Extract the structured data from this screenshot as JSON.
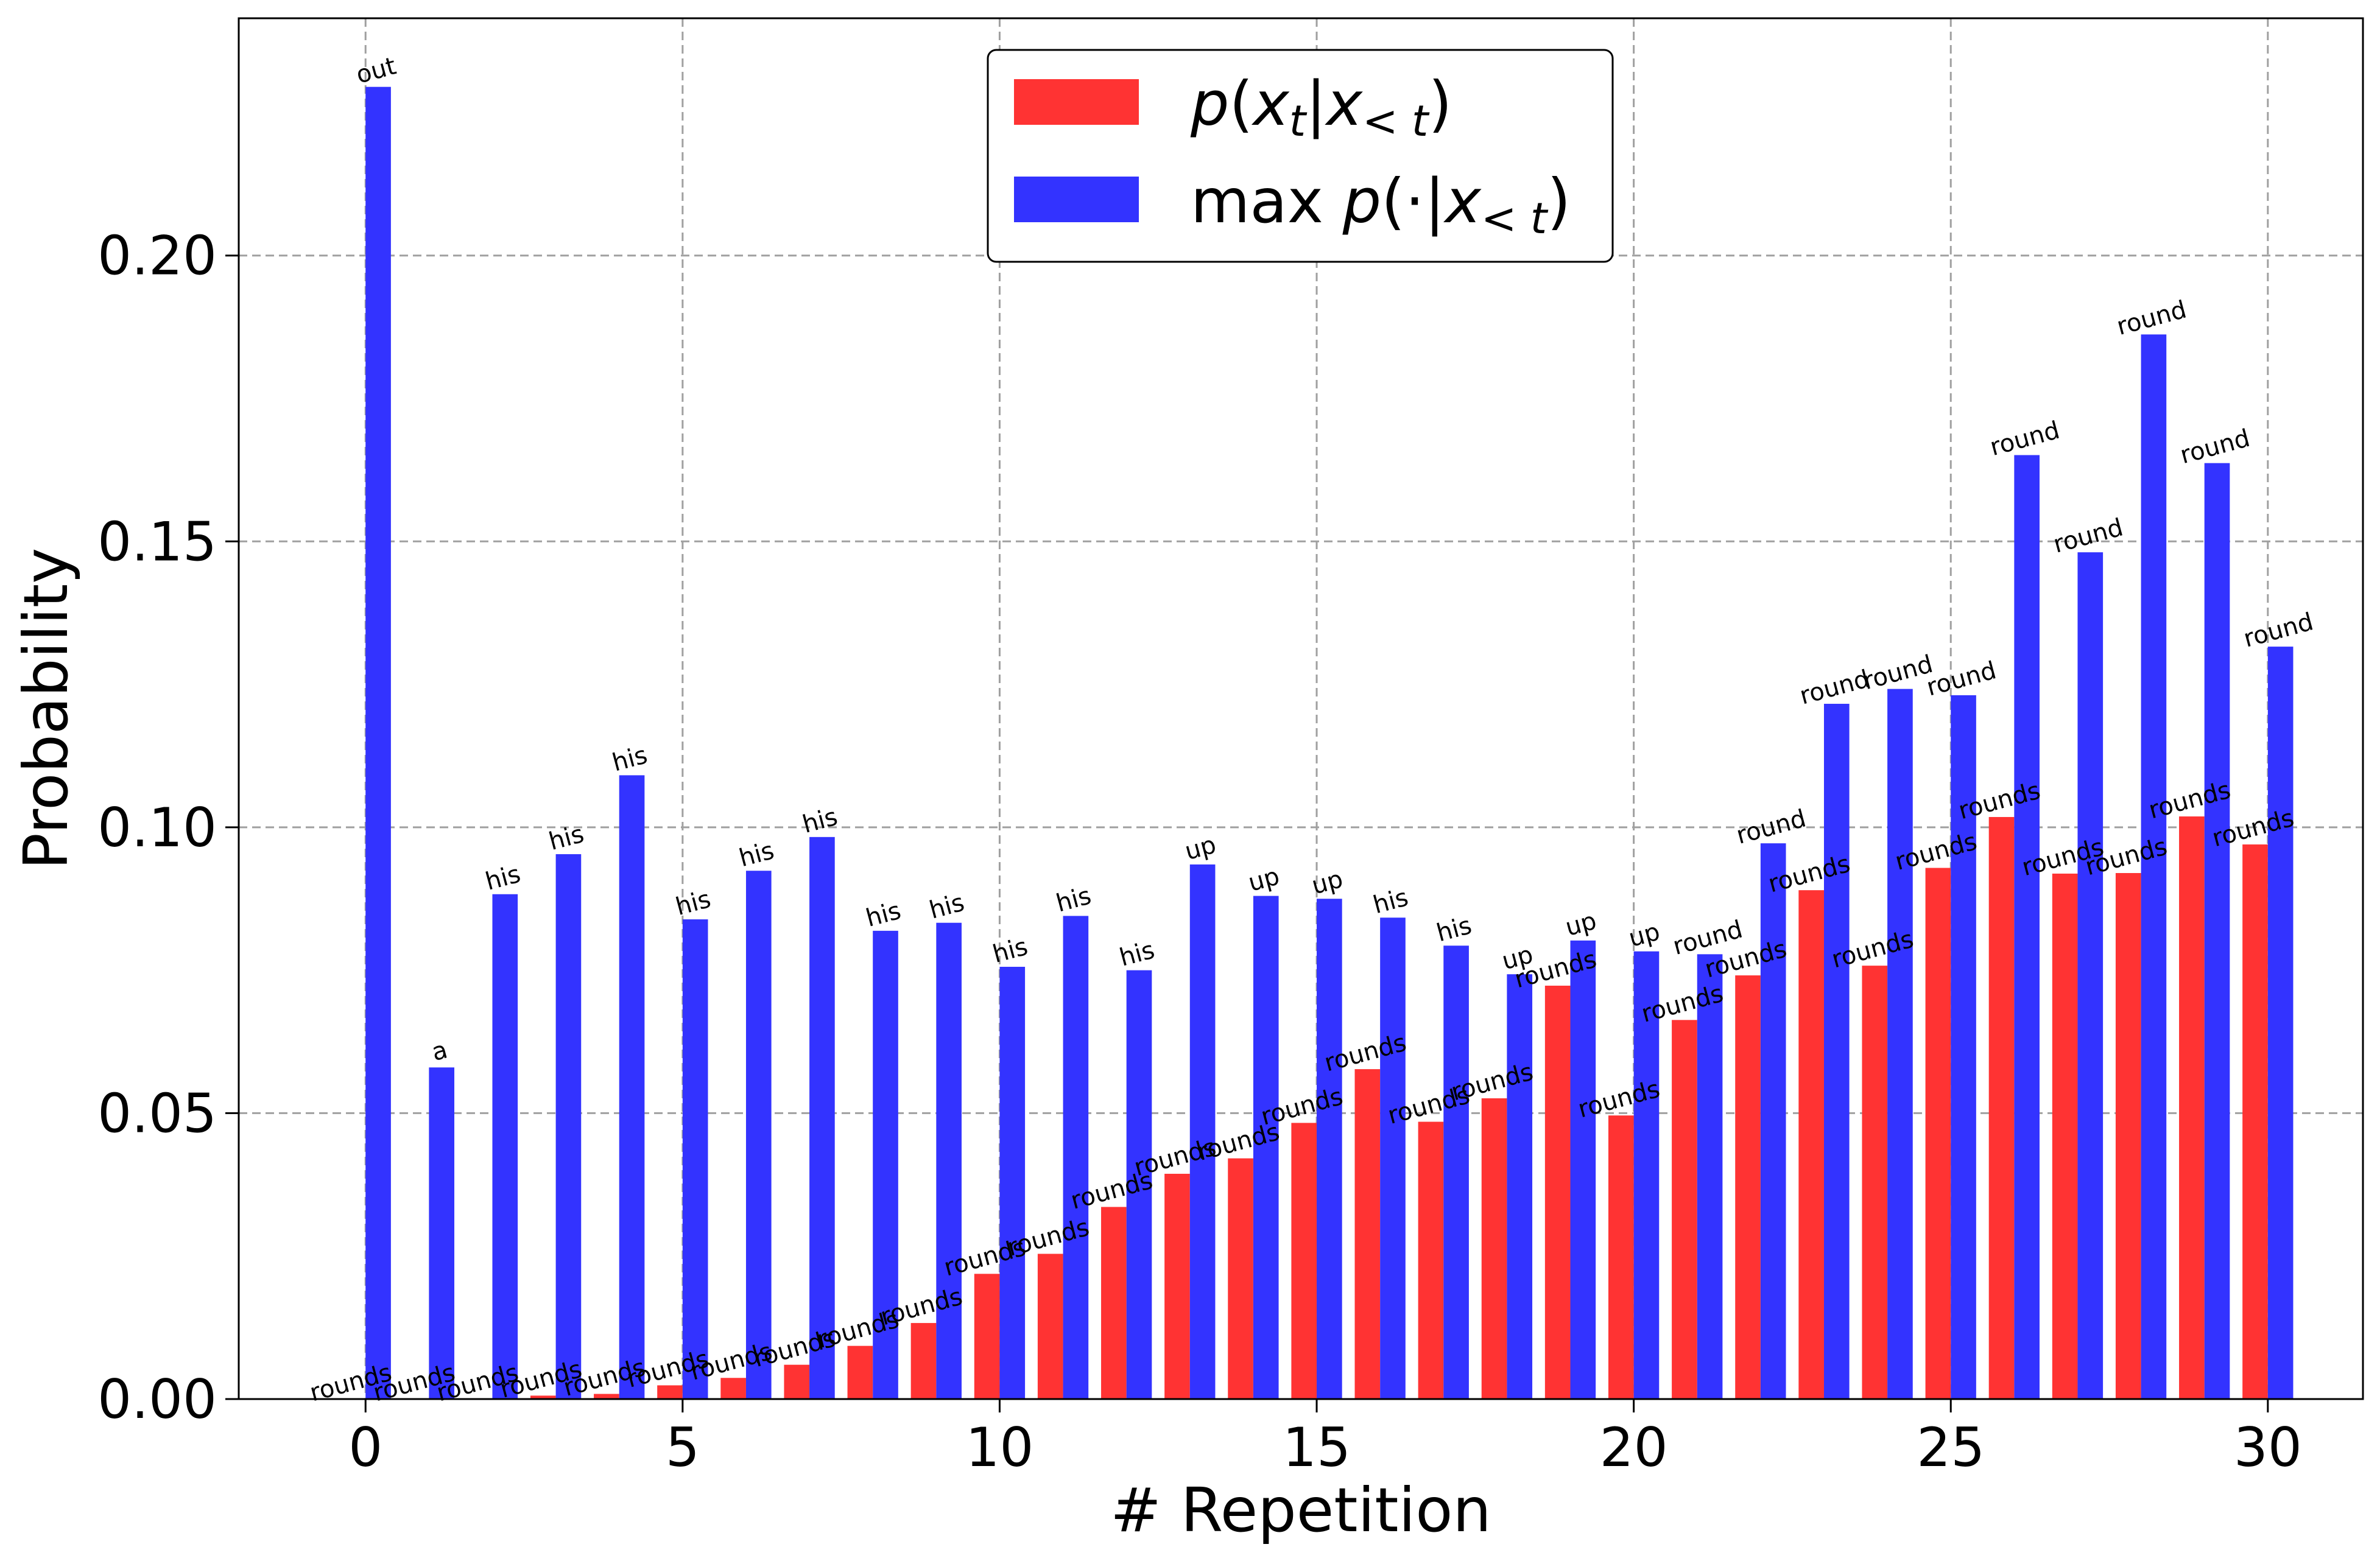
{
  "chart_data": {
    "type": "bar",
    "xlabel": "# Repetition",
    "ylabel": "Probability",
    "xlim": [
      -2,
      31.5
    ],
    "ylim": [
      0,
      0.2415
    ],
    "x_ticks": [
      0,
      5,
      10,
      15,
      20,
      25,
      30
    ],
    "y_ticks": [
      0.0,
      0.05,
      0.1,
      0.15,
      0.2
    ],
    "y_tick_labels": [
      "0.00",
      "0.05",
      "0.10",
      "0.15",
      "0.20"
    ],
    "x_tick_labels": [
      "0",
      "5",
      "10",
      "15",
      "20",
      "25",
      "30"
    ],
    "grid": true,
    "legend_position": "top-center",
    "x": [
      0,
      1,
      2,
      3,
      4,
      5,
      6,
      7,
      8,
      9,
      10,
      11,
      12,
      13,
      14,
      15,
      16,
      17,
      18,
      19,
      20,
      21,
      22,
      23,
      24,
      25,
      26,
      27,
      28,
      29,
      30
    ],
    "series": [
      {
        "name": "p(x_t|x_<t)",
        "legend_parts": {
          "p": "p",
          "paren_open": "(",
          "x": "x",
          "sub_t": "t",
          "bar": "|",
          "x2": "x",
          "sub_lt": "< t",
          "paren_close": ")"
        },
        "color": "#ff3333",
        "values": [
          0.0,
          0.0,
          0.0,
          0.0006,
          0.0009,
          0.0024,
          0.0037,
          0.006,
          0.0093,
          0.0133,
          0.0219,
          0.0254,
          0.0336,
          0.0394,
          0.0421,
          0.0483,
          0.0577,
          0.0485,
          0.0526,
          0.0723,
          0.0496,
          0.0663,
          0.0741,
          0.089,
          0.0758,
          0.0929,
          0.1018,
          0.0919,
          0.092,
          0.1019,
          0.097
        ],
        "labels": [
          "rounds",
          "rounds",
          "rounds",
          "rounds",
          "rounds",
          "rounds",
          "rounds",
          "rounds",
          "rounds",
          "rounds",
          "rounds",
          "rounds",
          "rounds",
          "rounds",
          "rounds",
          "rounds",
          "rounds",
          "rounds",
          "rounds",
          "rounds",
          "rounds",
          "rounds",
          "rounds",
          "rounds",
          "rounds",
          "rounds",
          "rounds",
          "rounds",
          "rounds",
          "rounds",
          "rounds"
        ]
      },
      {
        "name": "max p(·|x_<t)",
        "legend_parts": {
          "max": "max ",
          "p": "p",
          "paren_open": "(",
          "dot": "·",
          "bar": "|",
          "x": "x",
          "sub_lt": "< t",
          "paren_close": ")"
        },
        "color": "#3333ff",
        "values": [
          0.2295,
          0.058,
          0.0883,
          0.0953,
          0.1091,
          0.0839,
          0.0924,
          0.0983,
          0.0819,
          0.0833,
          0.0756,
          0.0845,
          0.075,
          0.0935,
          0.088,
          0.0875,
          0.0842,
          0.0793,
          0.0743,
          0.0802,
          0.0783,
          0.0778,
          0.0972,
          0.1216,
          0.1242,
          0.1231,
          0.1651,
          0.1481,
          0.1862,
          0.1637,
          0.1316
        ],
        "labels": [
          "out",
          "a",
          "his",
          "his",
          "his",
          "his",
          "his",
          "his",
          "his",
          "his",
          "his",
          "his",
          "his",
          "up",
          "up",
          "up",
          "his",
          "his",
          "up",
          "up",
          "up",
          "round",
          "round",
          "round",
          "round",
          "round",
          "round",
          "round",
          "round",
          "round",
          "round"
        ]
      }
    ]
  }
}
